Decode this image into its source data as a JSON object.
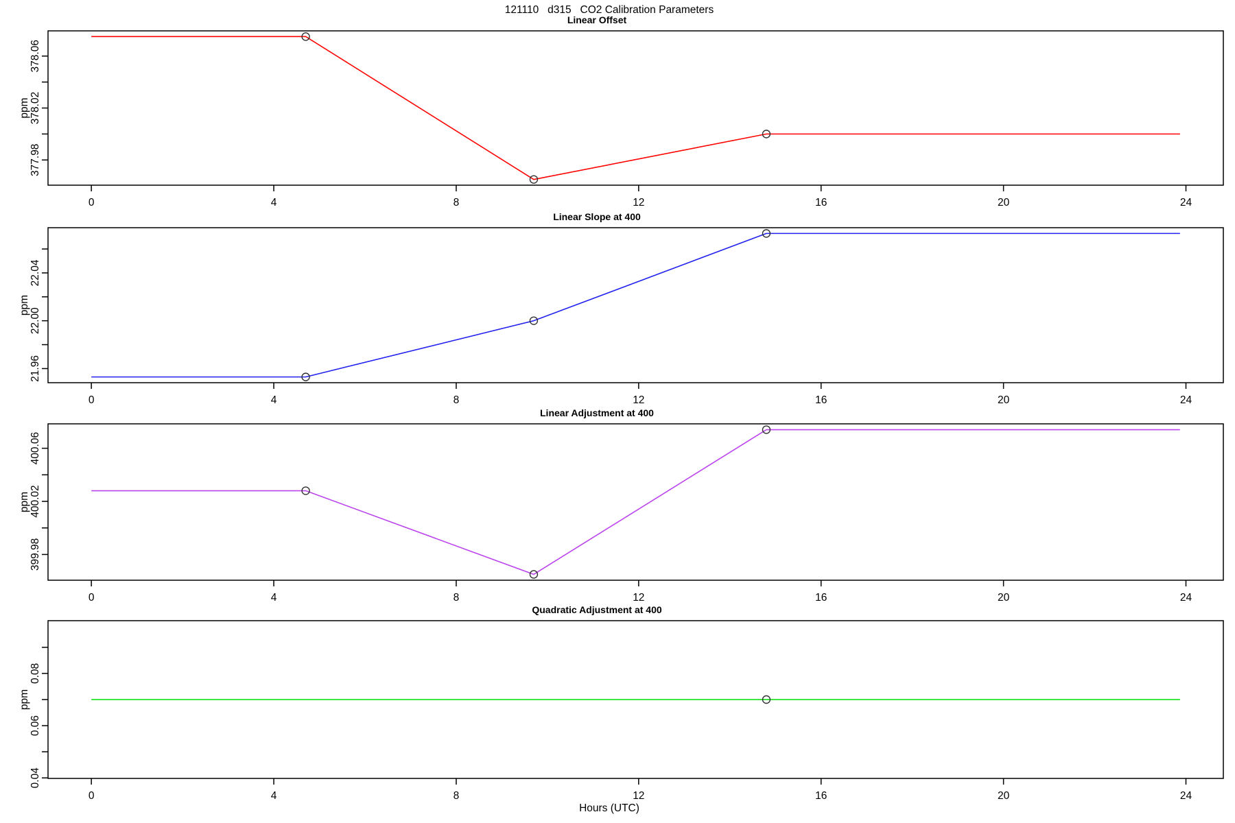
{
  "title": "121110   d315   CO2 Calibration Parameters",
  "x_axis": {
    "label": "Hours (UTC)",
    "xlim": [
      -0.95,
      24.82
    ],
    "ticks": [
      {
        "value": 0,
        "label": "0"
      },
      {
        "value": 4,
        "label": "4"
      },
      {
        "value": 8,
        "label": "8"
      },
      {
        "value": 12,
        "label": "12"
      },
      {
        "value": 16,
        "label": "16"
      },
      {
        "value": 20,
        "label": "20"
      },
      {
        "value": 24,
        "label": "24"
      }
    ]
  },
  "marker_color": "#333333",
  "chart_data": [
    {
      "type": "line",
      "title": "Linear Offset",
      "ylabel": "ppm",
      "color": "#ff0000",
      "ylim": [
        377.9606,
        378.0794
      ],
      "yticks": [
        {
          "value": 377.98,
          "label": "377.98"
        },
        {
          "value": 378.0,
          "label": ""
        },
        {
          "value": 378.02,
          "label": "378.02"
        },
        {
          "value": 378.04,
          "label": ""
        },
        {
          "value": 378.06,
          "label": "378.06"
        }
      ],
      "points": [
        {
          "x": 0,
          "y": 378.075,
          "marker": false
        },
        {
          "x": 4.7,
          "y": 378.075,
          "marker": true
        },
        {
          "x": 9.7,
          "y": 377.965,
          "marker": true
        },
        {
          "x": 14.8,
          "y": 378.0,
          "marker": true
        },
        {
          "x": 23.87,
          "y": 378.0,
          "marker": false
        }
      ]
    },
    {
      "type": "line",
      "title": "Linear Slope at 400",
      "ylabel": "ppm",
      "color": "#2222ee",
      "ylim": [
        21.9482,
        22.0778
      ],
      "yticks": [
        {
          "value": 21.96,
          "label": "21.96"
        },
        {
          "value": 21.98,
          "label": ""
        },
        {
          "value": 22.0,
          "label": "22.00"
        },
        {
          "value": 22.02,
          "label": ""
        },
        {
          "value": 22.04,
          "label": "22.04"
        },
        {
          "value": 22.06,
          "label": ""
        }
      ],
      "points": [
        {
          "x": 0,
          "y": 21.953,
          "marker": false
        },
        {
          "x": 4.7,
          "y": 21.953,
          "marker": true
        },
        {
          "x": 9.7,
          "y": 22.0,
          "marker": true
        },
        {
          "x": 14.8,
          "y": 22.073,
          "marker": true
        },
        {
          "x": 23.87,
          "y": 22.073,
          "marker": false
        }
      ]
    },
    {
      "type": "line",
      "title": "Linear Adjustment at 400",
      "ylabel": "ppm",
      "color": "#bb44ee",
      "ylim": [
        399.9606,
        400.0784
      ],
      "yticks": [
        {
          "value": 399.98,
          "label": "399.98"
        },
        {
          "value": 400.0,
          "label": ""
        },
        {
          "value": 400.02,
          "label": "400.02"
        },
        {
          "value": 400.04,
          "label": ""
        },
        {
          "value": 400.06,
          "label": "400.06"
        }
      ],
      "points": [
        {
          "x": 0,
          "y": 400.028,
          "marker": false
        },
        {
          "x": 4.7,
          "y": 400.028,
          "marker": true
        },
        {
          "x": 9.7,
          "y": 399.965,
          "marker": true
        },
        {
          "x": 14.8,
          "y": 400.074,
          "marker": true
        },
        {
          "x": 23.87,
          "y": 400.074,
          "marker": false
        }
      ]
    },
    {
      "type": "line",
      "title": "Quadratic Adjustment at 400",
      "ylabel": "ppm",
      "color": "#00dd00",
      "ylim": [
        0.0398,
        0.1002
      ],
      "yticks": [
        {
          "value": 0.04,
          "label": "0.04"
        },
        {
          "value": 0.05,
          "label": ""
        },
        {
          "value": 0.06,
          "label": "0.06"
        },
        {
          "value": 0.07,
          "label": ""
        },
        {
          "value": 0.08,
          "label": "0.08"
        },
        {
          "value": 0.09,
          "label": ""
        }
      ],
      "points": [
        {
          "x": 0,
          "y": 0.07,
          "marker": false
        },
        {
          "x": 14.8,
          "y": 0.07,
          "marker": true
        },
        {
          "x": 23.87,
          "y": 0.07,
          "marker": false
        }
      ]
    }
  ]
}
